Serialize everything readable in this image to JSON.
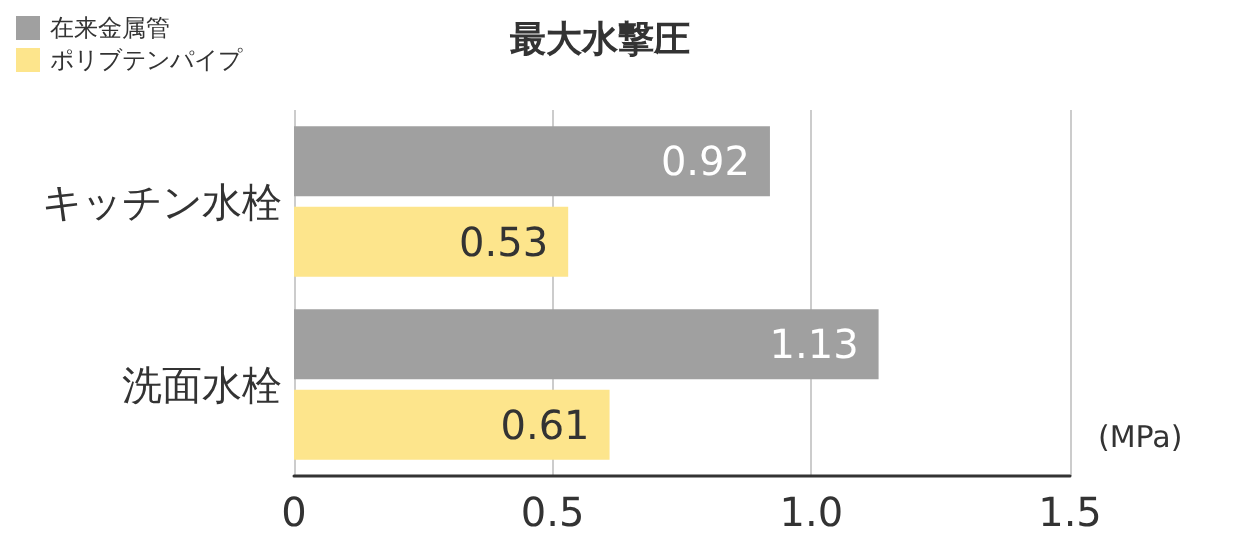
{
  "chart_data": {
    "type": "bar",
    "orientation": "horizontal",
    "title": "最大水撃圧",
    "xlabel": "(MPa)",
    "categories": [
      "キッチン水栓",
      "洗面水栓"
    ],
    "series": [
      {
        "name": "在来金属管",
        "color": "#a0a0a0",
        "values": [
          0.92,
          1.13
        ]
      },
      {
        "name": "ポリブテンパイプ",
        "color": "#fde58c",
        "values": [
          0.53,
          0.61
        ]
      }
    ],
    "xlim": [
      0,
      1.5
    ],
    "xticks": [
      0,
      0.5,
      {
        "value": 1,
        "label": "1.0"
      },
      1.5
    ],
    "grid": "x",
    "legend": "top left",
    "data_labels": true
  }
}
